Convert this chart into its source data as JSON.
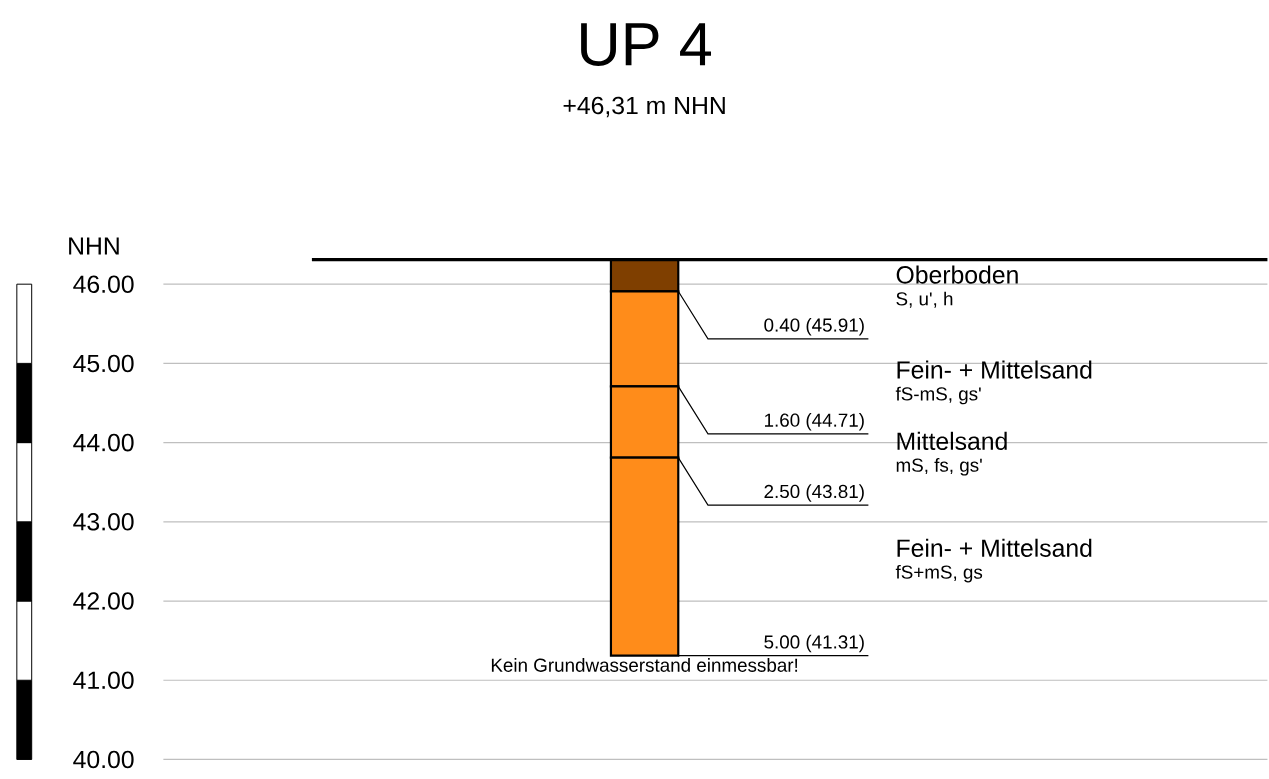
{
  "chart_data": {
    "type": "bar",
    "title": "UP 4",
    "subtitle": "+46,31 m NHN",
    "ylabel": "NHN",
    "categories": [
      null
    ],
    "series": [
      {
        "name": "Oberboden",
        "color": "#7f3f00",
        "values": [
          0.4
        ],
        "base": [
          45.91
        ]
      },
      {
        "name": "Fein- + Mittelsand",
        "color": "#ff8c1a",
        "values": [
          1.2
        ],
        "base": [
          44.71
        ]
      },
      {
        "name": "Mittelsand",
        "color": "#ff8c1a",
        "values": [
          0.9
        ],
        "base": [
          43.81
        ]
      },
      {
        "name": "Fein- + Mittelsand",
        "color": "#ff8c1a",
        "values": [
          2.5
        ],
        "base": [
          41.31
        ]
      }
    ],
    "annotations": [
      "S, u', h",
      "fS-mS, gs'",
      "mS, fs, gs'",
      "fS+mS, gs",
      "0.40 (45.91)",
      "1.60 (44.71)",
      "2.50 (43.81)",
      "5.00 (41.31)",
      "Kein Grundwasserstand einmessbar!"
    ],
    "ref_lines": [
      {
        "axis": "y",
        "value": 46.31,
        "color": "#000000"
      }
    ],
    "ylim": [
      40,
      46.31
    ],
    "yticks": [
      {
        "value": 40,
        "label": "40.00"
      },
      {
        "value": 41,
        "label": "41.00"
      },
      {
        "value": 42,
        "label": "42.00"
      },
      {
        "value": 43,
        "label": "43.00"
      },
      {
        "value": 44,
        "label": "44.00"
      },
      {
        "value": 45,
        "label": "45.00"
      },
      {
        "value": 46,
        "label": "46.00"
      }
    ],
    "grid": "y",
    "tick_labels": "y"
  }
}
